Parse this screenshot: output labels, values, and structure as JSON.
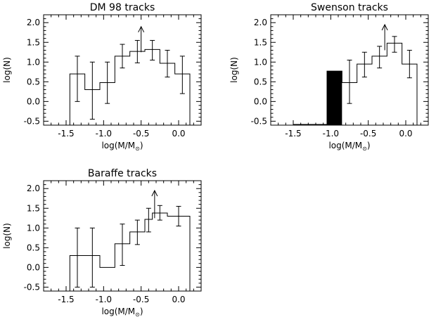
{
  "chart_data": [
    {
      "type": "histogram",
      "title": "DM 98 tracks",
      "xlabel": "log(M/M",
      "xlabel_sub": "⊙",
      "xlabel_close": ")",
      "ylabel": "log(N)",
      "xlim": [
        -1.8,
        0.3
      ],
      "ylim": [
        -0.6,
        2.2
      ],
      "xticks": [
        -1.5,
        -1.0,
        -0.5,
        0.0
      ],
      "xtick_labels": [
        "-1.5",
        "-1.0",
        "-0.5",
        "0.0"
      ],
      "yticks": [
        -0.5,
        0.0,
        0.5,
        1.0,
        1.5,
        2.0
      ],
      "ytick_labels": [
        "-0.5",
        "0.0",
        "0.5",
        "1.0",
        "1.5",
        "2.0"
      ],
      "bin_edges": [
        -1.45,
        -1.25,
        -1.05,
        -0.85,
        -0.65,
        -0.45,
        -0.25,
        -0.05,
        0.15
      ],
      "values": [
        0.7,
        0.3,
        0.48,
        1.15,
        1.27,
        1.32,
        0.97,
        0.7
      ],
      "error_low": [
        0.0,
        -0.45,
        -0.05,
        0.85,
        0.98,
        1.05,
        0.62,
        0.2
      ],
      "error_high": [
        1.15,
        1.0,
        1.0,
        1.45,
        1.55,
        1.55,
        1.3,
        1.15
      ],
      "filled_bins": [],
      "lower_limit_arrow": {
        "x": -0.5,
        "from": 1.25,
        "to": 1.9
      }
    },
    {
      "type": "histogram",
      "title": "Swenson tracks",
      "xlabel": "log(M/M",
      "xlabel_sub": "⊙",
      "xlabel_close": ")",
      "ylabel": "log(N)",
      "xlim": [
        -1.8,
        0.3
      ],
      "ylim": [
        -0.6,
        2.2
      ],
      "xticks": [
        -1.5,
        -1.0,
        -0.5,
        0.0
      ],
      "xtick_labels": [
        "-1.5",
        "-1.0",
        "-0.5",
        "0.0"
      ],
      "yticks": [
        -0.5,
        0.0,
        0.5,
        1.0,
        1.5,
        2.0
      ],
      "ytick_labels": [
        "-0.5",
        "0.0",
        "0.5",
        "1.0",
        "1.5",
        "2.0"
      ],
      "bin_edges": [
        -1.05,
        -0.85,
        -0.65,
        -0.45,
        -0.25,
        -0.05,
        0.15
      ],
      "values": [
        0.77,
        0.48,
        0.95,
        1.15,
        1.48,
        0.95
      ],
      "error_low": [
        null,
        -0.05,
        0.62,
        0.85,
        1.25,
        0.6
      ],
      "error_high": [
        null,
        1.05,
        1.25,
        1.4,
        1.65,
        1.3
      ],
      "filled_bins": [
        0
      ],
      "lower_limit_arrow": {
        "x": -0.28,
        "from": 1.3,
        "to": 1.95
      }
    },
    {
      "type": "histogram",
      "title": "Baraffe tracks",
      "xlabel": "log(M/M",
      "xlabel_sub": "⊙",
      "xlabel_close": ")",
      "ylabel": "log(N)",
      "xlim": [
        -1.8,
        0.3
      ],
      "ylim": [
        -0.6,
        2.2
      ],
      "xticks": [
        -1.5,
        -1.0,
        -0.5,
        0.0
      ],
      "xtick_labels": [
        "-1.5",
        "-1.0",
        "-0.5",
        "0.0"
      ],
      "yticks": [
        -0.5,
        0.0,
        0.5,
        1.0,
        1.5,
        2.0
      ],
      "ytick_labels": [
        "-0.5",
        "0.0",
        "0.5",
        "1.0",
        "1.5",
        "2.0"
      ],
      "bin_edges": [
        -1.45,
        -1.25,
        -1.05,
        -0.85,
        -0.65,
        -0.45,
        -0.35,
        -0.15,
        0.15
      ],
      "values": [
        0.3,
        0.3,
        0.0,
        0.6,
        0.9,
        1.22,
        1.38,
        1.3
      ],
      "error_low": [
        -0.5,
        -0.5,
        null,
        0.05,
        0.58,
        0.9,
        1.2,
        1.05
      ],
      "error_high": [
        1.0,
        1.0,
        null,
        1.1,
        1.2,
        1.5,
        1.57,
        1.55
      ],
      "filled_bins": [],
      "lower_limit_arrow": {
        "x": -0.32,
        "from": 1.25,
        "to": 1.95
      }
    }
  ]
}
